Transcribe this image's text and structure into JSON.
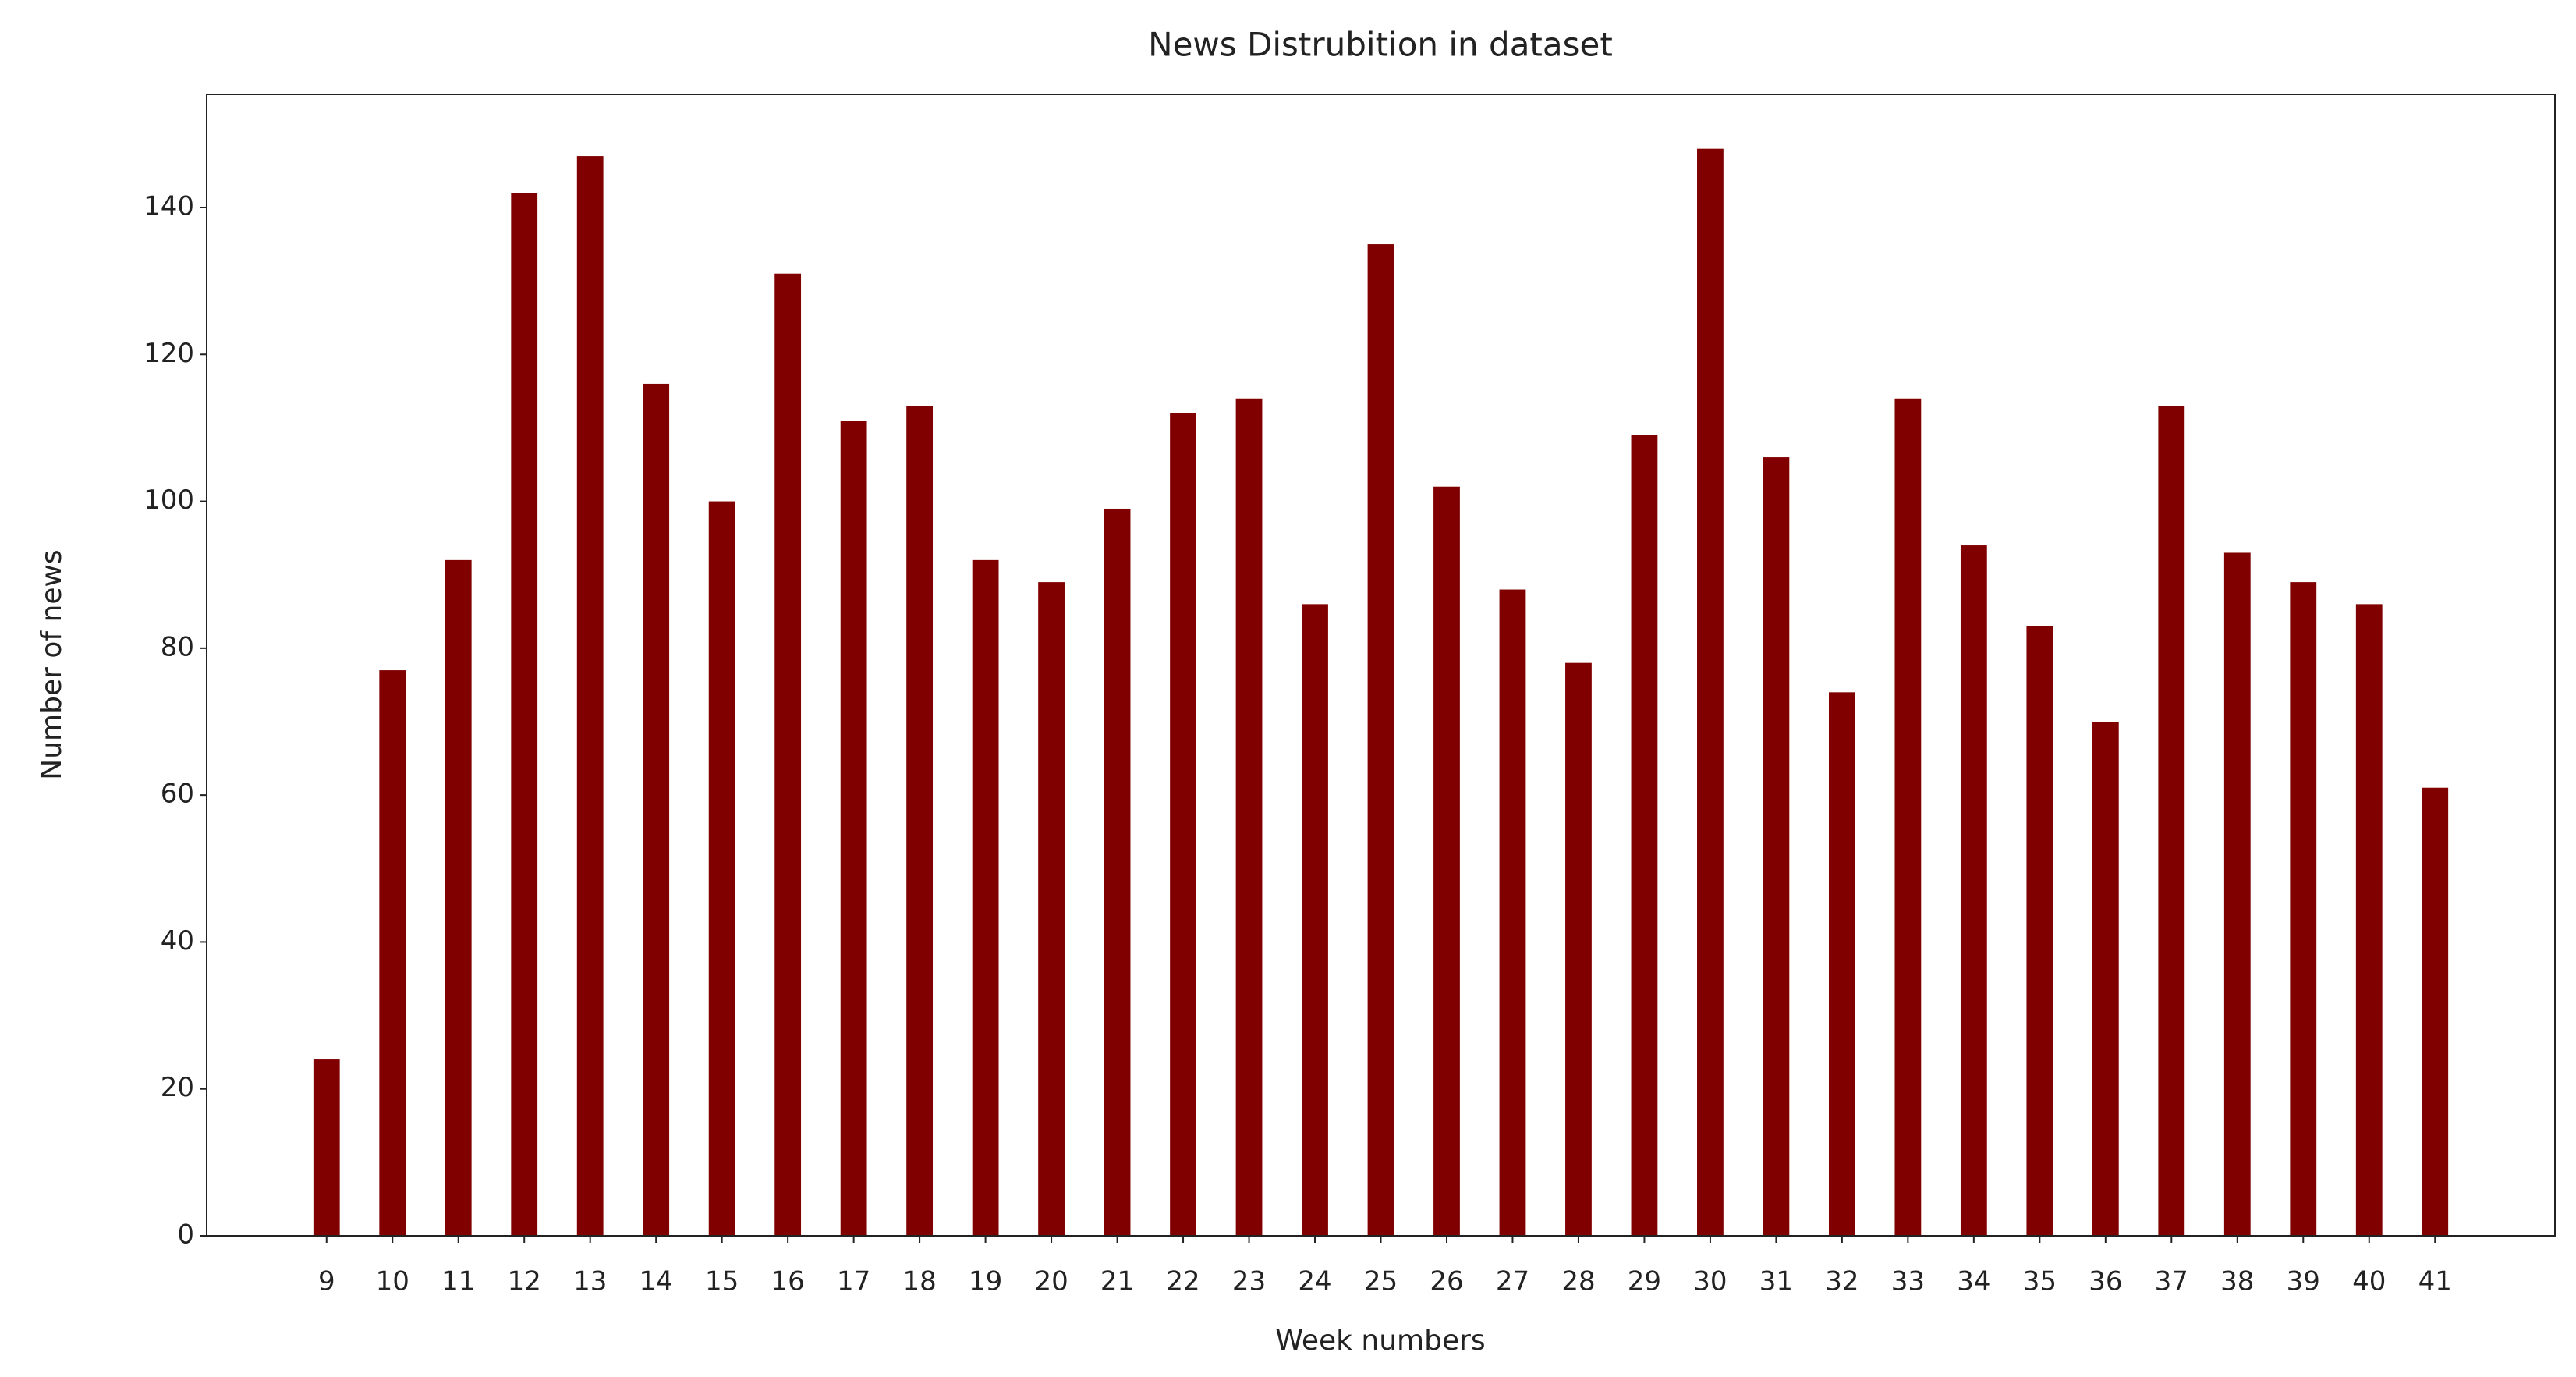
{
  "chart_data": {
    "type": "bar",
    "title": "News Distrubition in dataset",
    "xlabel": "Week numbers",
    "ylabel": "Number of news",
    "x": [
      9,
      10,
      11,
      12,
      13,
      14,
      15,
      16,
      17,
      18,
      19,
      20,
      21,
      22,
      23,
      24,
      25,
      26,
      27,
      28,
      29,
      30,
      31,
      32,
      33,
      34,
      35,
      36,
      37,
      38,
      39,
      40,
      41
    ],
    "values": [
      24,
      77,
      92,
      142,
      147,
      116,
      100,
      131,
      111,
      113,
      92,
      89,
      99,
      112,
      114,
      86,
      135,
      102,
      88,
      78,
      109,
      148,
      106,
      74,
      114,
      94,
      83,
      70,
      113,
      93,
      89,
      86,
      61
    ],
    "color": "#800000",
    "bar_width": 0.4,
    "xlim": [
      7.18,
      42.82
    ],
    "xticks": [
      9,
      10,
      11,
      12,
      13,
      14,
      15,
      16,
      17,
      18,
      19,
      20,
      21,
      22,
      23,
      24,
      25,
      26,
      27,
      28,
      29,
      30,
      31,
      32,
      33,
      34,
      35,
      36,
      37,
      38,
      39,
      40,
      41
    ],
    "ylim": [
      0,
      155.4
    ],
    "yticks": [
      0,
      20,
      40,
      60,
      80,
      100,
      120,
      140
    ],
    "grid": false
  }
}
